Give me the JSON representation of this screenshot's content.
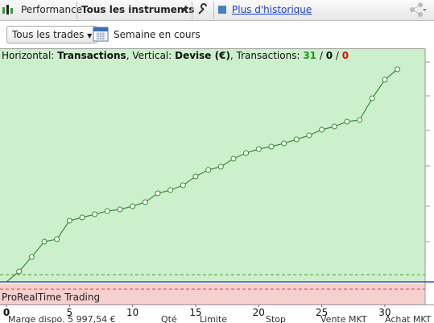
{
  "toolbar": {
    "tab": "Performance",
    "instruments": "Tous les instruments",
    "history_link": "Plus d'historique"
  },
  "filters": {
    "trades": "Tous les trades",
    "period": "Semaine en cours"
  },
  "chart_data": {
    "type": "line",
    "header": {
      "h_label": "Horizontal: ",
      "h_value": "Transactions",
      "v_label": ", Vertical: ",
      "v_value": "Devise (€)",
      "t_label": ", Transactions: ",
      "wins": "31",
      "sep": " / ",
      "neutral": "0",
      "losses": "0"
    },
    "x": [
      0,
      1,
      2,
      3,
      4,
      5,
      6,
      7,
      8,
      9,
      10,
      11,
      12,
      13,
      14,
      15,
      16,
      17,
      18,
      19,
      20,
      21,
      22,
      23,
      24,
      25,
      26,
      27,
      28,
      29,
      30,
      31
    ],
    "values": [
      0,
      13,
      31,
      50,
      53,
      76,
      80,
      84,
      88,
      90,
      94,
      99,
      110,
      114,
      120,
      131,
      139,
      143,
      153,
      160,
      165,
      168,
      172,
      177,
      182,
      189,
      193,
      199,
      201,
      228,
      251,
      264
    ],
    "color": "#3a8a3a",
    "xlim": [
      0,
      33.9
    ],
    "ylim": [
      -28,
      290
    ],
    "xticks": [
      0,
      5,
      10,
      15,
      20,
      25,
      30
    ],
    "thresholds": [
      9,
      -9
    ],
    "footer": "ProRealTime Trading"
  },
  "bottom_bar": [
    "Marge dispo. 5 997,54 €",
    "Qté",
    "Limite",
    "Stop",
    "Vente MKT",
    "Achat MKT"
  ]
}
